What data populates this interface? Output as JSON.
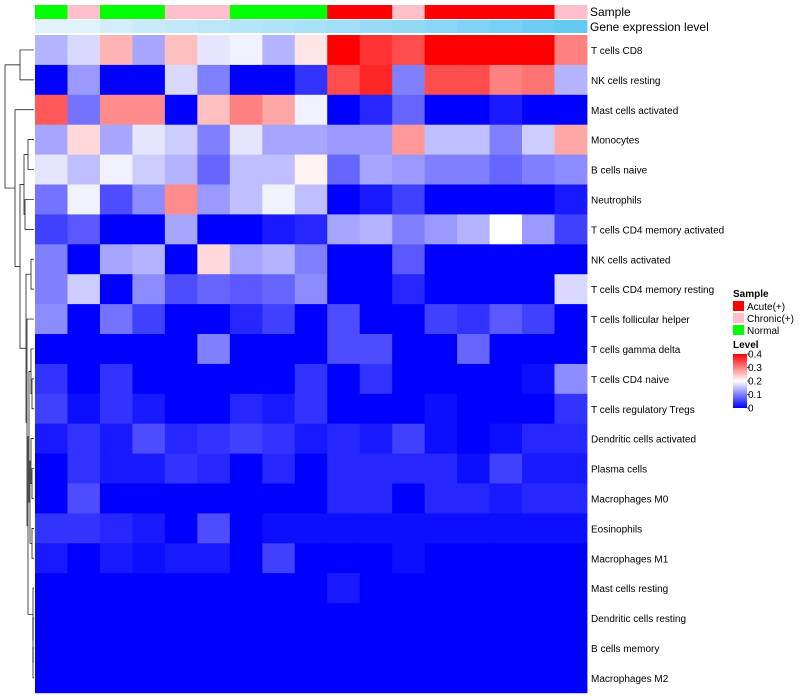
{
  "chart_data": {
    "type": "heatmap",
    "annotation_tracks": [
      "Sample",
      "Gene expression level"
    ],
    "sample_groups": [
      "N",
      "C",
      "N",
      "N",
      "C",
      "C",
      "N",
      "N",
      "N",
      "A",
      "A",
      "C",
      "A",
      "A",
      "A",
      "A",
      "C"
    ],
    "expression_level": [
      0.05,
      0.06,
      0.15,
      0.22,
      0.26,
      0.3,
      0.34,
      0.38,
      0.42,
      0.47,
      0.52,
      0.57,
      0.62,
      0.68,
      0.74,
      0.8,
      0.86
    ],
    "rows": [
      {
        "label": "T cells CD8",
        "values": [
          0.14,
          0.17,
          0.26,
          0.13,
          0.25,
          0.18,
          0.19,
          0.14,
          0.22,
          0.4,
          0.36,
          0.34,
          0.4,
          0.4,
          0.4,
          0.4,
          0.3
        ]
      },
      {
        "label": "NK cells resting",
        "values": [
          0.0,
          0.12,
          0.0,
          0.0,
          0.17,
          0.1,
          0.0,
          0.0,
          0.04,
          0.34,
          0.37,
          0.1,
          0.34,
          0.34,
          0.3,
          0.31,
          0.14
        ]
      },
      {
        "label": "Mast cells activated",
        "values": [
          0.33,
          0.09,
          0.29,
          0.29,
          0.0,
          0.25,
          0.3,
          0.27,
          0.19,
          0.0,
          0.03,
          0.08,
          0.0,
          0.0,
          0.02,
          0.0,
          0.0
        ]
      },
      {
        "label": "Monocytes",
        "values": [
          0.13,
          0.23,
          0.13,
          0.18,
          0.16,
          0.1,
          0.18,
          0.13,
          0.13,
          0.12,
          0.12,
          0.28,
          0.15,
          0.15,
          0.1,
          0.16,
          0.27
        ]
      },
      {
        "label": "B cells naive",
        "values": [
          0.18,
          0.15,
          0.19,
          0.16,
          0.14,
          0.08,
          0.15,
          0.15,
          0.21,
          0.08,
          0.13,
          0.12,
          0.1,
          0.1,
          0.08,
          0.1,
          0.11
        ]
      },
      {
        "label": "Neutrophils",
        "values": [
          0.09,
          0.19,
          0.06,
          0.11,
          0.29,
          0.12,
          0.15,
          0.19,
          0.15,
          0.0,
          0.02,
          0.05,
          0.0,
          0.0,
          0.0,
          0.0,
          0.02
        ]
      },
      {
        "label": "T cells CD4 memory activated",
        "values": [
          0.05,
          0.07,
          0.0,
          0.0,
          0.13,
          0.0,
          0.0,
          0.02,
          0.03,
          0.13,
          0.14,
          0.1,
          0.12,
          0.14,
          0.2,
          0.12,
          0.05
        ]
      },
      {
        "label": "NK cells activated",
        "values": [
          0.1,
          0.0,
          0.13,
          0.14,
          0.0,
          0.23,
          0.13,
          0.14,
          0.1,
          0.0,
          0.0,
          0.07,
          0.0,
          0.0,
          0.0,
          0.0,
          0.0
        ]
      },
      {
        "label": "T cells CD4 memory resting",
        "values": [
          0.1,
          0.16,
          0.0,
          0.11,
          0.06,
          0.08,
          0.07,
          0.08,
          0.11,
          0.0,
          0.0,
          0.03,
          0.0,
          0.0,
          0.0,
          0.0,
          0.17
        ]
      },
      {
        "label": "T cells follicular helper",
        "values": [
          0.11,
          0.0,
          0.09,
          0.05,
          0.0,
          0.0,
          0.03,
          0.05,
          0.0,
          0.06,
          0.0,
          0.0,
          0.05,
          0.04,
          0.07,
          0.05,
          0.0
        ]
      },
      {
        "label": "T cells gamma delta",
        "values": [
          0.0,
          0.0,
          0.0,
          0.0,
          0.0,
          0.1,
          0.0,
          0.0,
          0.0,
          0.06,
          0.06,
          0.0,
          0.0,
          0.08,
          0.0,
          0.0,
          0.0
        ]
      },
      {
        "label": "T cells CD4 naive",
        "values": [
          0.04,
          0.0,
          0.04,
          0.0,
          0.0,
          0.0,
          0.0,
          0.0,
          0.04,
          0.0,
          0.04,
          0.0,
          0.0,
          0.0,
          0.0,
          0.01,
          0.11
        ]
      },
      {
        "label": "T cells regulatory  Tregs",
        "values": [
          0.05,
          0.01,
          0.04,
          0.02,
          0.0,
          0.0,
          0.03,
          0.02,
          0.04,
          0.0,
          0.0,
          0.0,
          0.01,
          0.0,
          0.0,
          0.0,
          0.04
        ]
      },
      {
        "label": "Dendritic cells activated",
        "values": [
          0.02,
          0.04,
          0.02,
          0.06,
          0.03,
          0.04,
          0.05,
          0.04,
          0.02,
          0.03,
          0.02,
          0.05,
          0.01,
          0.0,
          0.01,
          0.03,
          0.03
        ]
      },
      {
        "label": "Plasma cells",
        "values": [
          0.0,
          0.04,
          0.02,
          0.02,
          0.04,
          0.03,
          0.0,
          0.03,
          0.0,
          0.03,
          0.03,
          0.03,
          0.03,
          0.01,
          0.05,
          0.02,
          0.02
        ]
      },
      {
        "label": "Macrophages M0",
        "values": [
          0.0,
          0.06,
          0.0,
          0.0,
          0.0,
          0.0,
          0.0,
          0.0,
          0.0,
          0.03,
          0.03,
          0.0,
          0.03,
          0.03,
          0.02,
          0.03,
          0.03
        ]
      },
      {
        "label": "Eosinophils",
        "values": [
          0.04,
          0.04,
          0.03,
          0.02,
          0.0,
          0.06,
          0.0,
          0.01,
          0.01,
          0.01,
          0.01,
          0.01,
          0.01,
          0.01,
          0.01,
          0.01,
          0.01
        ]
      },
      {
        "label": "Macrophages M1",
        "values": [
          0.02,
          0.0,
          0.02,
          0.01,
          0.02,
          0.02,
          0.0,
          0.05,
          0.0,
          0.0,
          0.0,
          0.01,
          0.0,
          0.0,
          0.0,
          0.0,
          0.0
        ]
      },
      {
        "label": "Mast cells resting",
        "values": [
          0.0,
          0.0,
          0.0,
          0.0,
          0.0,
          0.0,
          0.0,
          0.0,
          0.0,
          0.02,
          0.0,
          0.0,
          0.0,
          0.0,
          0.0,
          0.0,
          0.0
        ]
      },
      {
        "label": "Dendritic cells resting",
        "values": [
          0.0,
          0.0,
          0.0,
          0.0,
          0.0,
          0.0,
          0.0,
          0.0,
          0.0,
          0.0,
          0.0,
          0.0,
          0.0,
          0.0,
          0.0,
          0.0,
          0.0
        ]
      },
      {
        "label": "B cells memory",
        "values": [
          0.0,
          0.0,
          0.0,
          0.0,
          0.0,
          0.0,
          0.0,
          0.0,
          0.0,
          0.0,
          0.0,
          0.0,
          0.0,
          0.0,
          0.0,
          0.0,
          0.0
        ]
      },
      {
        "label": "Macrophages M2",
        "values": [
          0.0,
          0.0,
          0.0,
          0.0,
          0.0,
          0.0,
          0.0,
          0.0,
          0.0,
          0.0,
          0.0,
          0.0,
          0.0,
          0.0,
          0.0,
          0.0,
          0.0
        ]
      }
    ],
    "legend_sample": {
      "title": "Sample",
      "items": [
        {
          "key": "A",
          "label": "Acute(+)",
          "color": "#ff0000"
        },
        {
          "key": "C",
          "label": "Chronic(+)",
          "color": "#ffc0cb"
        },
        {
          "key": "N",
          "label": "Normal",
          "color": "#00ff00"
        }
      ]
    },
    "legend_level": {
      "title": "Level",
      "ticks": [
        {
          "value": 0.4,
          "label": "0.4"
        },
        {
          "value": 0.3,
          "label": "0.3"
        },
        {
          "value": 0.2,
          "label": "0.2"
        },
        {
          "value": 0.1,
          "label": "0.1"
        },
        {
          "value": 0.0,
          "label": "0"
        }
      ],
      "min": 0,
      "max": 0.4,
      "low_color": "#0000ff",
      "mid_color": "#ffffff",
      "high_color": "#ff0000"
    },
    "expression_palette": {
      "low": "#eaf6fc",
      "high": "#4fc3f2"
    }
  }
}
